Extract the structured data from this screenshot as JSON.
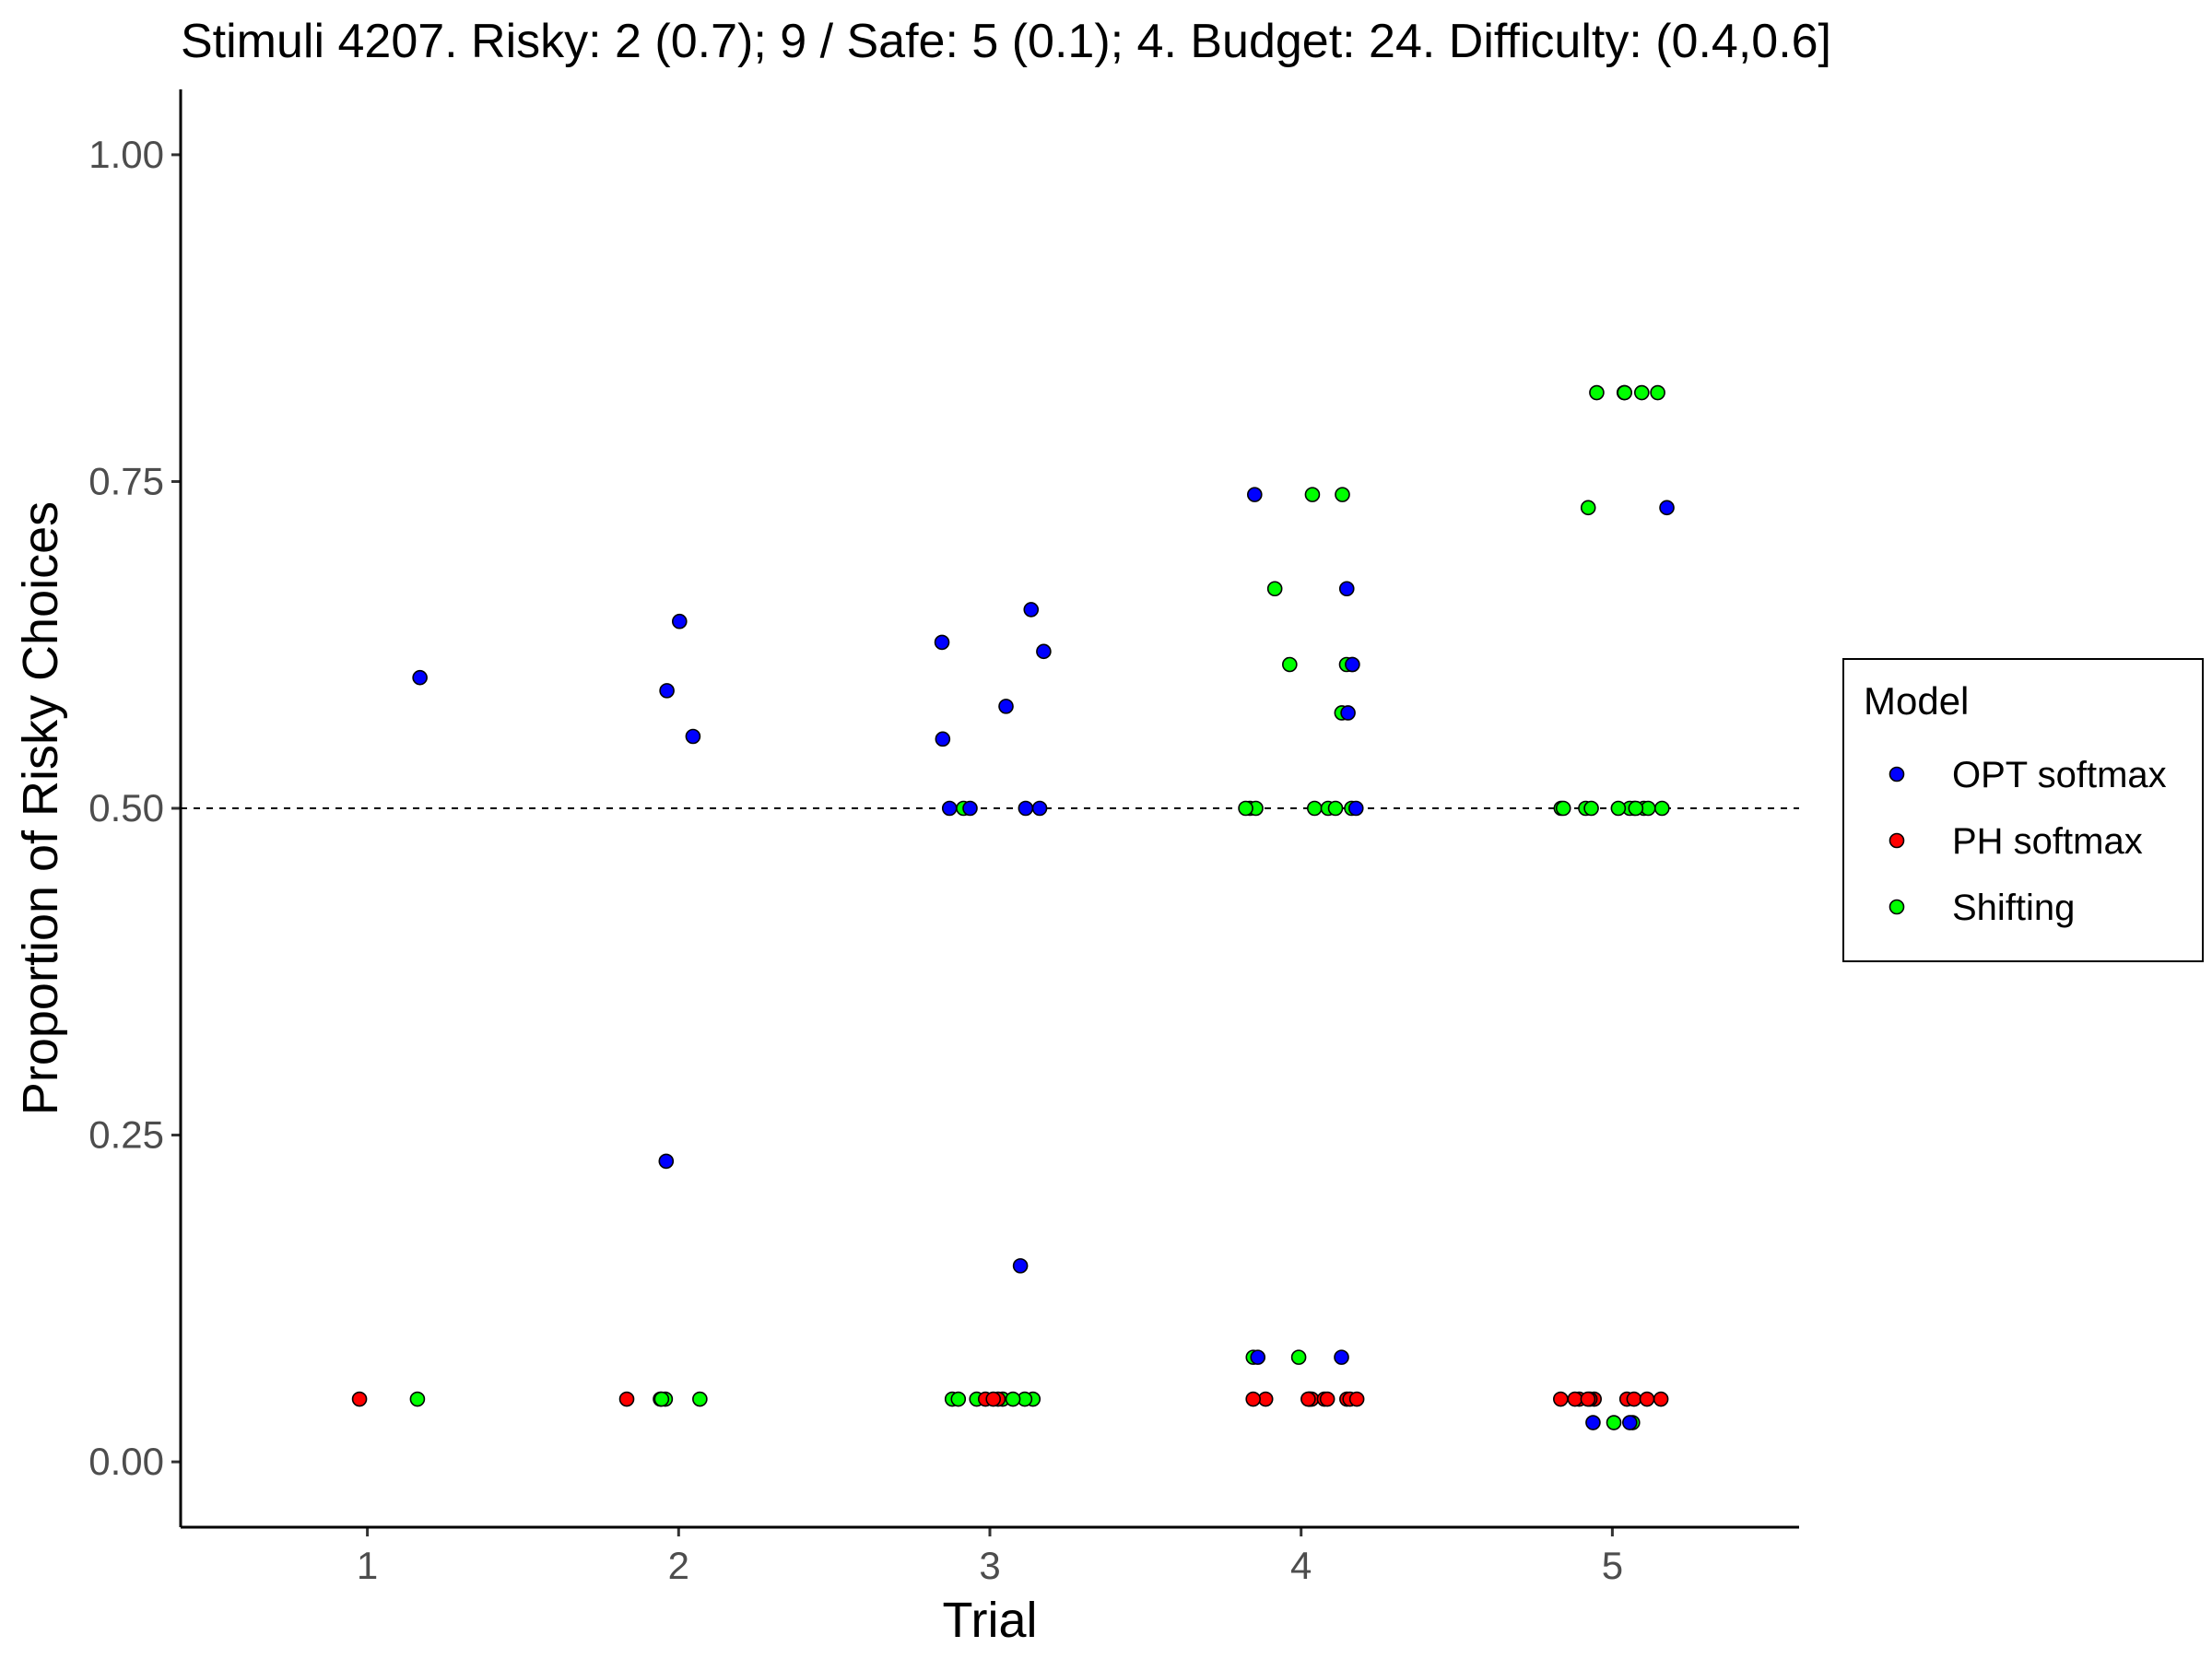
{
  "chart_data": {
    "type": "scatter",
    "title": "Stimuli 4207. Risky: 2 (0.7); 9 /  Safe: 5 (0.1); 4. Budget: 24. Difficulty: (0.4,0.6]",
    "xlabel": "Trial",
    "ylabel": "Proportion of Risky Choices",
    "x_ticks": [
      "1",
      "2",
      "3",
      "4",
      "5"
    ],
    "y_ticks": [
      "0.00",
      "0.25",
      "0.50",
      "0.75",
      "1.00"
    ],
    "xlim": [
      0.4,
      5.6
    ],
    "ylim": [
      -0.05,
      1.05
    ],
    "reference_line": {
      "y": 0.5,
      "style": "dashed"
    },
    "grid": false,
    "legend": {
      "title": "Model",
      "position": "right",
      "entries": [
        "OPT softmax",
        "PH softmax",
        "Shifting"
      ]
    },
    "series": [
      {
        "name": "OPT softmax",
        "color": "#0000ff",
        "points": [
          {
            "x": 1,
            "y": 0.6
          },
          {
            "x": 2,
            "y": 0.555
          },
          {
            "x": 2,
            "y": 0.59
          },
          {
            "x": 2,
            "y": 0.643
          },
          {
            "x": 2,
            "y": 0.23
          },
          {
            "x": 3,
            "y": 0.652
          },
          {
            "x": 3,
            "y": 0.627
          },
          {
            "x": 3,
            "y": 0.62
          },
          {
            "x": 3,
            "y": 0.578
          },
          {
            "x": 3,
            "y": 0.553
          },
          {
            "x": 3,
            "y": 0.5
          },
          {
            "x": 3,
            "y": 0.5
          },
          {
            "x": 3,
            "y": 0.5
          },
          {
            "x": 3,
            "y": 0.5
          },
          {
            "x": 3,
            "y": 0.15
          },
          {
            "x": 4,
            "y": 0.74
          },
          {
            "x": 4,
            "y": 0.668
          },
          {
            "x": 4,
            "y": 0.61
          },
          {
            "x": 4,
            "y": 0.573
          },
          {
            "x": 4,
            "y": 0.5
          },
          {
            "x": 4,
            "y": 0.08
          },
          {
            "x": 4,
            "y": 0.08
          },
          {
            "x": 5,
            "y": 0.73
          },
          {
            "x": 5,
            "y": 0.03
          },
          {
            "x": 5,
            "y": 0.03
          }
        ]
      },
      {
        "name": "PH softmax",
        "color": "#ff0000",
        "points": [
          {
            "x": 1,
            "y": 0.048
          },
          {
            "x": 2,
            "y": 0.048
          },
          {
            "x": 3,
            "y": 0.048
          },
          {
            "x": 3,
            "y": 0.048
          },
          {
            "x": 3,
            "y": 0.048
          },
          {
            "x": 4,
            "y": 0.048
          },
          {
            "x": 4,
            "y": 0.048
          },
          {
            "x": 4,
            "y": 0.048
          },
          {
            "x": 4,
            "y": 0.048
          },
          {
            "x": 4,
            "y": 0.048
          },
          {
            "x": 4,
            "y": 0.048
          },
          {
            "x": 4,
            "y": 0.048
          },
          {
            "x": 4,
            "y": 0.048
          },
          {
            "x": 4,
            "y": 0.048
          },
          {
            "x": 4,
            "y": 0.048
          },
          {
            "x": 4,
            "y": 0.048
          },
          {
            "x": 5,
            "y": 0.048
          },
          {
            "x": 5,
            "y": 0.048
          },
          {
            "x": 5,
            "y": 0.048
          },
          {
            "x": 5,
            "y": 0.048
          },
          {
            "x": 5,
            "y": 0.048
          },
          {
            "x": 5,
            "y": 0.048
          },
          {
            "x": 5,
            "y": 0.048
          },
          {
            "x": 5,
            "y": 0.048
          },
          {
            "x": 5,
            "y": 0.048
          },
          {
            "x": 5,
            "y": 0.048
          }
        ]
      },
      {
        "name": "Shifting",
        "color": "#00ff00",
        "points": [
          {
            "x": 1,
            "y": 0.048
          },
          {
            "x": 2,
            "y": 0.048
          },
          {
            "x": 2,
            "y": 0.048
          },
          {
            "x": 2,
            "y": 0.048
          },
          {
            "x": 2,
            "y": 0.048
          },
          {
            "x": 3,
            "y": 0.5
          },
          {
            "x": 3,
            "y": 0.048
          },
          {
            "x": 3,
            "y": 0.048
          },
          {
            "x": 3,
            "y": 0.048
          },
          {
            "x": 3,
            "y": 0.048
          },
          {
            "x": 3,
            "y": 0.048
          },
          {
            "x": 3,
            "y": 0.048
          },
          {
            "x": 3,
            "y": 0.048
          },
          {
            "x": 4,
            "y": 0.74
          },
          {
            "x": 4,
            "y": 0.74
          },
          {
            "x": 4,
            "y": 0.668
          },
          {
            "x": 4,
            "y": 0.61
          },
          {
            "x": 4,
            "y": 0.61
          },
          {
            "x": 4,
            "y": 0.61
          },
          {
            "x": 4,
            "y": 0.573
          },
          {
            "x": 4,
            "y": 0.5
          },
          {
            "x": 4,
            "y": 0.5
          },
          {
            "x": 4,
            "y": 0.5
          },
          {
            "x": 4,
            "y": 0.5
          },
          {
            "x": 4,
            "y": 0.5
          },
          {
            "x": 4,
            "y": 0.5
          },
          {
            "x": 4,
            "y": 0.5
          },
          {
            "x": 4,
            "y": 0.08
          },
          {
            "x": 4,
            "y": 0.08
          },
          {
            "x": 5,
            "y": 0.818
          },
          {
            "x": 5,
            "y": 0.818
          },
          {
            "x": 5,
            "y": 0.818
          },
          {
            "x": 5,
            "y": 0.818
          },
          {
            "x": 5,
            "y": 0.818
          },
          {
            "x": 5,
            "y": 0.73
          },
          {
            "x": 5,
            "y": 0.5
          },
          {
            "x": 5,
            "y": 0.5
          },
          {
            "x": 5,
            "y": 0.5
          },
          {
            "x": 5,
            "y": 0.5
          },
          {
            "x": 5,
            "y": 0.5
          },
          {
            "x": 5,
            "y": 0.5
          },
          {
            "x": 5,
            "y": 0.5
          },
          {
            "x": 5,
            "y": 0.5
          },
          {
            "x": 5,
            "y": 0.5
          },
          {
            "x": 5,
            "y": 0.5
          },
          {
            "x": 5,
            "y": 0.5
          },
          {
            "x": 5,
            "y": 0.03
          },
          {
            "x": 5,
            "y": 0.03
          }
        ]
      }
    ]
  }
}
